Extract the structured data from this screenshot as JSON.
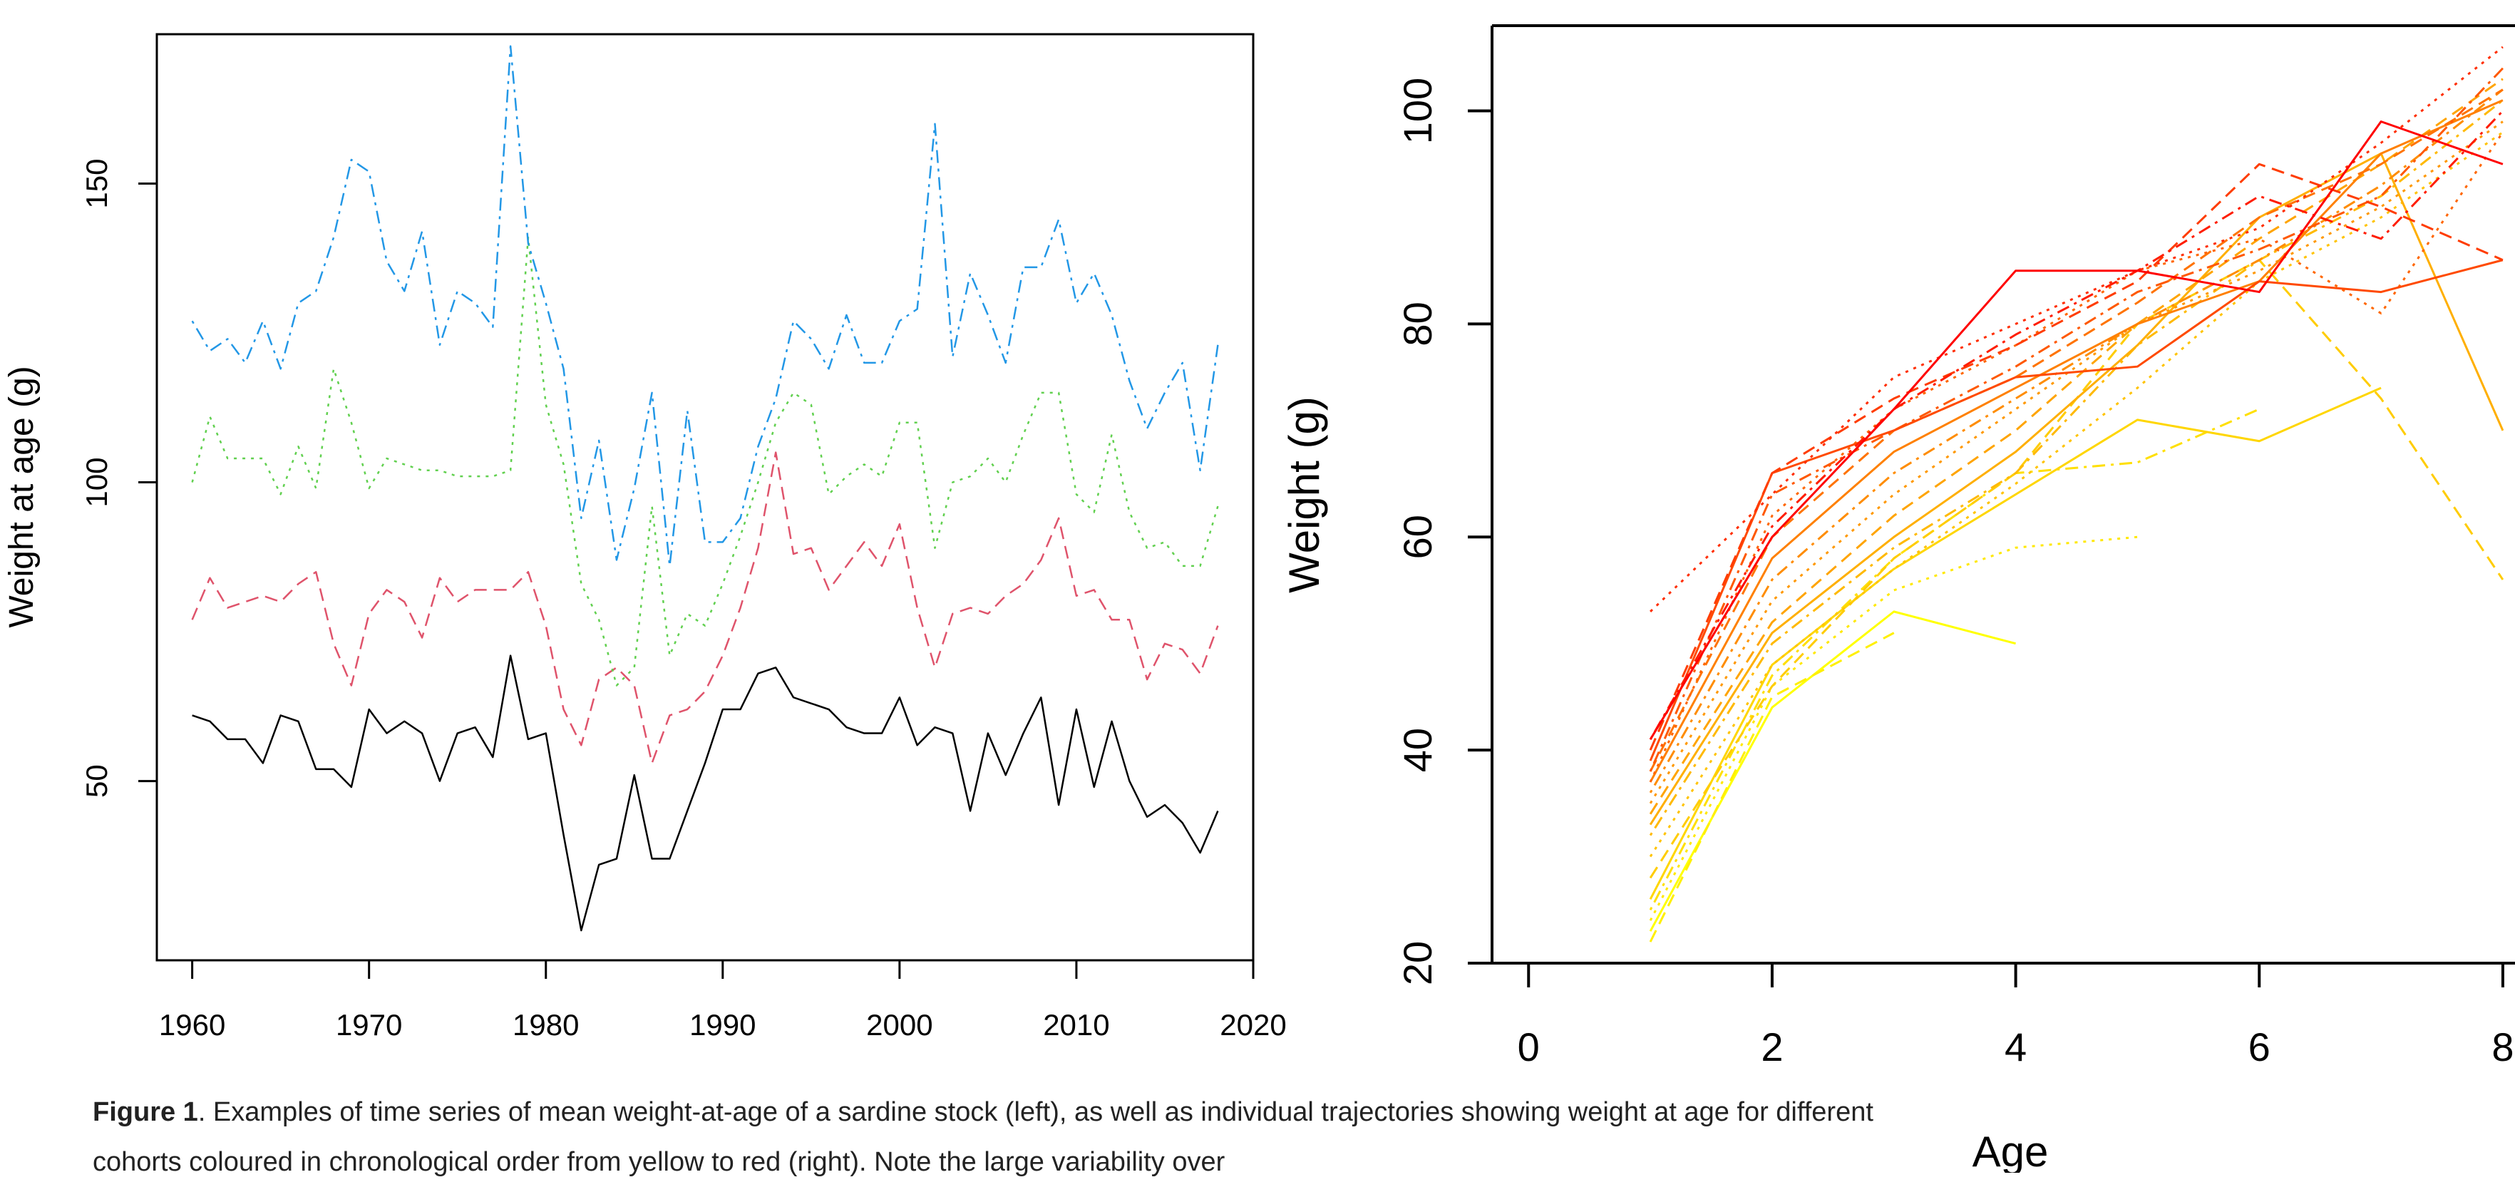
{
  "caption": {
    "label": "Figure 1",
    "text": ". Examples of time series of mean weight-at-age of a sardine stock (left), as well as individual trajectories showing weight at age for different cohorts coloured in chronological order from yellow to red (right). Note the large variability over"
  },
  "chart_data": [
    {
      "type": "line",
      "title": "",
      "xlabel": "",
      "ylabel": "Weight at age (g)",
      "xlim": [
        1958,
        2020
      ],
      "ylim": [
        20,
        175
      ],
      "x_ticks": [
        "1960",
        "1970",
        "1980",
        "1990",
        "2000",
        "2010",
        "2020"
      ],
      "y_ticks": [
        "50",
        "100",
        "150"
      ],
      "grid": false,
      "legend": "none",
      "x": [
        1960,
        1961,
        1962,
        1963,
        1964,
        1965,
        1966,
        1967,
        1968,
        1969,
        1970,
        1971,
        1972,
        1973,
        1974,
        1975,
        1976,
        1977,
        1978,
        1979,
        1980,
        1981,
        1982,
        1983,
        1984,
        1985,
        1986,
        1987,
        1988,
        1989,
        1990,
        1991,
        1992,
        1993,
        1994,
        1995,
        1996,
        1997,
        1998,
        1999,
        2000,
        2001,
        2002,
        2003,
        2004,
        2005,
        2006,
        2007,
        2008,
        2009,
        2010,
        2011,
        2012,
        2013,
        2014,
        2015,
        2016,
        2017,
        2018
      ],
      "series": [
        {
          "color": "#000000",
          "dash": "solid",
          "values": [
            61,
            60,
            57,
            57,
            53,
            61,
            60,
            52,
            52,
            49,
            62,
            58,
            60,
            58,
            50,
            58,
            59,
            54,
            71,
            57,
            58,
            41,
            25,
            36,
            37,
            51,
            37,
            37,
            45,
            53,
            62,
            62,
            68,
            69,
            64,
            63,
            62,
            59,
            58,
            58,
            64,
            56,
            59,
            58,
            45,
            58,
            51,
            58,
            64,
            46,
            62,
            49,
            60,
            50,
            44,
            46,
            43,
            38,
            45
          ]
        },
        {
          "color": "#df536b",
          "dash": "dashed",
          "values": [
            77,
            84,
            79,
            80,
            81,
            80,
            83,
            85,
            73,
            66,
            78,
            82,
            80,
            74,
            84,
            80,
            82,
            82,
            82,
            85,
            76,
            62,
            56,
            67,
            69,
            66,
            53,
            61,
            62,
            65,
            71,
            79,
            89,
            105,
            88,
            89,
            82,
            86,
            90,
            86,
            93,
            79,
            69,
            78,
            79,
            78,
            81,
            83,
            87,
            94,
            81,
            82,
            77,
            77,
            67,
            73,
            72,
            68,
            76
          ]
        },
        {
          "color": "#61d04f",
          "dash": "dotted",
          "values": [
            100,
            111,
            104,
            104,
            104,
            98,
            106,
            99,
            119,
            110,
            99,
            104,
            103,
            102,
            102,
            101,
            101,
            101,
            102,
            141,
            113,
            103,
            83,
            77,
            66,
            69,
            96,
            71,
            78,
            76,
            83,
            91,
            100,
            110,
            115,
            113,
            98,
            101,
            103,
            101,
            110,
            110,
            89,
            100,
            101,
            104,
            100,
            108,
            115,
            115,
            98,
            95,
            108,
            95,
            89,
            90,
            86,
            86,
            96
          ]
        },
        {
          "color": "#2297e6",
          "dash": "dashdot",
          "values": [
            127,
            122,
            124,
            120,
            127,
            119,
            130,
            132,
            141,
            154,
            152,
            137,
            132,
            142,
            123,
            132,
            130,
            126,
            173,
            140,
            130,
            119,
            94,
            107,
            87,
            99,
            115,
            86,
            112,
            90,
            90,
            94,
            106,
            114,
            127,
            124,
            119,
            128,
            120,
            120,
            127,
            129,
            160,
            121,
            135,
            128,
            120,
            136,
            136,
            144,
            130,
            135,
            128,
            117,
            109,
            115,
            120,
            102,
            123
          ]
        }
      ]
    },
    {
      "type": "line",
      "title": "",
      "xlabel": "Age",
      "ylabel": "Weight (g)",
      "xlim": [
        -0.3,
        8.1
      ],
      "ylim": [
        20,
        108
      ],
      "x_ticks": [
        "0",
        "2",
        "4",
        "6",
        "8"
      ],
      "y_ticks": [
        "20",
        "40",
        "60",
        "80",
        "100"
      ],
      "grid": false,
      "legend": "none",
      "series": [
        {
          "color": "#ffff00",
          "dash": "solid",
          "x": [
            1,
            2,
            3,
            4
          ],
          "values": [
            23,
            44,
            53,
            50
          ]
        },
        {
          "color": "#ffef00",
          "dash": "dashed",
          "x": [
            1,
            2,
            3
          ],
          "values": [
            22,
            45,
            51
          ]
        },
        {
          "color": "#ffe800",
          "dash": "dotted",
          "x": [
            1,
            2,
            3,
            4,
            5
          ],
          "values": [
            24,
            46,
            55,
            59,
            60
          ]
        },
        {
          "color": "#ffdf00",
          "dash": "dashdot",
          "x": [
            1,
            2,
            3,
            4,
            5,
            6
          ],
          "values": [
            25,
            47,
            58,
            66,
            67,
            72
          ]
        },
        {
          "color": "#ffd600",
          "dash": "solid",
          "x": [
            1,
            2,
            3,
            4,
            5,
            6,
            7
          ],
          "values": [
            26,
            48,
            57,
            64,
            71,
            69,
            74
          ]
        },
        {
          "color": "#ffcc00",
          "dash": "dashed",
          "x": [
            1,
            2,
            3,
            4,
            5,
            6,
            7,
            8
          ],
          "values": [
            28,
            46,
            58,
            66,
            80,
            86,
            73,
            56
          ]
        },
        {
          "color": "#ffc300",
          "dash": "dotted",
          "x": [
            1,
            2,
            3,
            4,
            5,
            6,
            7,
            8
          ],
          "values": [
            30,
            48,
            57,
            65,
            74,
            84,
            90,
            98
          ]
        },
        {
          "color": "#ffb900",
          "dash": "dashdot",
          "x": [
            1,
            2,
            3,
            4,
            5,
            6,
            7,
            8
          ],
          "values": [
            32,
            50,
            59,
            66,
            78,
            86,
            92,
            101
          ]
        },
        {
          "color": "#ffaf00",
          "dash": "solid",
          "x": [
            1,
            2,
            3,
            4,
            5,
            6,
            7,
            8
          ],
          "values": [
            33,
            51,
            60,
            68,
            78,
            90,
            96,
            70
          ]
        },
        {
          "color": "#ffa400",
          "dash": "dashed",
          "x": [
            1,
            2,
            3,
            4,
            5,
            6,
            7,
            8
          ],
          "values": [
            34,
            52,
            62,
            70,
            80,
            88,
            95,
            103
          ]
        },
        {
          "color": "#ff9800",
          "dash": "dotted",
          "x": [
            1,
            2,
            3,
            4,
            5,
            6,
            7,
            8
          ],
          "values": [
            35,
            54,
            64,
            72,
            80,
            85,
            91,
            99
          ]
        },
        {
          "color": "#ff8c00",
          "dash": "dashdot",
          "x": [
            1,
            2,
            3,
            4,
            5,
            6,
            7,
            8
          ],
          "values": [
            36,
            56,
            66,
            73,
            80,
            86,
            93,
            102
          ]
        },
        {
          "color": "#ff8000",
          "dash": "solid",
          "x": [
            1,
            2,
            3,
            4,
            5,
            6,
            7,
            8
          ],
          "values": [
            37,
            58,
            68,
            74,
            80,
            84,
            96,
            101
          ]
        },
        {
          "color": "#ff7300",
          "dash": "dashed",
          "x": [
            1,
            2,
            3,
            4,
            5,
            6,
            7,
            8
          ],
          "values": [
            38,
            60,
            70,
            75,
            82,
            90,
            95,
            102
          ]
        },
        {
          "color": "#ff6600",
          "dash": "dotted",
          "x": [
            1,
            2,
            3,
            4,
            5,
            6,
            7,
            8
          ],
          "values": [
            37,
            62,
            72,
            78,
            85,
            88,
            81,
            98
          ]
        },
        {
          "color": "#ff5800",
          "dash": "dashdot",
          "x": [
            1,
            2,
            3,
            4,
            5,
            6,
            7,
            8
          ],
          "values": [
            38,
            64,
            70,
            76,
            83,
            87,
            92,
            104
          ]
        },
        {
          "color": "#ff4a00",
          "dash": "solid",
          "x": [
            1,
            2,
            3,
            4,
            5,
            6,
            7,
            8
          ],
          "values": [
            39,
            66,
            70,
            75,
            76,
            84,
            83,
            86
          ]
        },
        {
          "color": "#ff3c00",
          "dash": "dashed",
          "x": [
            1,
            2,
            3,
            4,
            5,
            6,
            7,
            8
          ],
          "values": [
            40,
            66,
            73,
            78,
            84,
            95,
            91,
            86
          ]
        },
        {
          "color": "#ff2d00",
          "dash": "dotted",
          "x": [
            1,
            2,
            3,
            4,
            5,
            6,
            7,
            8
          ],
          "values": [
            53,
            64,
            75,
            80,
            85,
            89,
            97,
            106
          ]
        },
        {
          "color": "#ff1d00",
          "dash": "dashdot",
          "x": [
            1,
            2,
            3,
            4,
            5,
            6,
            7,
            8
          ],
          "values": [
            41,
            61,
            72,
            79,
            85,
            92,
            88,
            100
          ]
        },
        {
          "color": "#ff0000",
          "dash": "solid",
          "x": [
            1,
            2,
            3,
            4,
            5,
            6,
            7,
            8
          ],
          "values": [
            41,
            60,
            72,
            85,
            85,
            83,
            99,
            95
          ]
        }
      ]
    }
  ]
}
